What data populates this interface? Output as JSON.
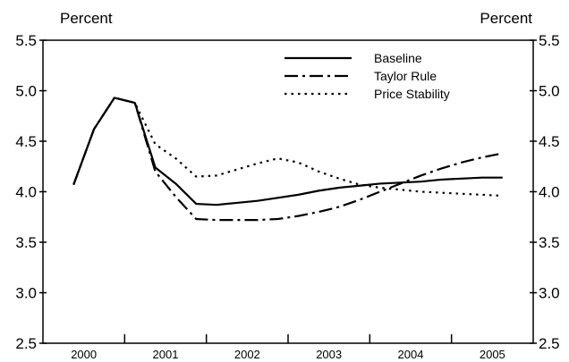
{
  "chart_data": {
    "type": "line",
    "left_axis_label": "Percent",
    "right_axis_label": "Percent",
    "ylim": [
      2.5,
      5.5
    ],
    "yticks": [
      "2.5",
      "3.0",
      "3.5",
      "4.0",
      "4.5",
      "5.0",
      "5.5"
    ],
    "x_axis": {
      "start_quarter": "2000Q1",
      "end_quarter": "2005Q4",
      "tick_labels": [
        "2000",
        "2001",
        "2002",
        "2003",
        "2004",
        "2005"
      ]
    },
    "grid": false,
    "legend_position": "top-right",
    "series": [
      {
        "name": "Baseline",
        "style": "solid",
        "start_quarter": "2000Q2",
        "values": [
          4.07,
          4.62,
          4.93,
          4.88,
          4.24,
          4.08,
          3.88,
          3.87,
          3.89,
          3.91,
          3.94,
          3.97,
          4.01,
          4.04,
          4.06,
          4.08,
          4.09,
          4.1,
          4.12,
          4.13,
          4.14,
          4.14
        ]
      },
      {
        "name": "Taylor Rule",
        "style": "dash-dot",
        "start_quarter": "2000Q2",
        "values": [
          4.07,
          4.62,
          4.93,
          4.88,
          4.2,
          3.95,
          3.73,
          3.72,
          3.72,
          3.72,
          3.73,
          3.76,
          3.8,
          3.85,
          3.92,
          4.0,
          4.08,
          4.16,
          4.23,
          4.29,
          4.34,
          4.38
        ]
      },
      {
        "name": "Price Stability",
        "style": "dotted",
        "start_quarter": "2000Q2",
        "values": [
          4.07,
          4.62,
          4.93,
          4.88,
          4.47,
          4.33,
          4.15,
          4.16,
          4.22,
          4.28,
          4.33,
          4.29,
          4.2,
          4.13,
          4.07,
          4.04,
          4.02,
          4.0,
          3.99,
          3.98,
          3.97,
          3.96
        ]
      }
    ]
  }
}
